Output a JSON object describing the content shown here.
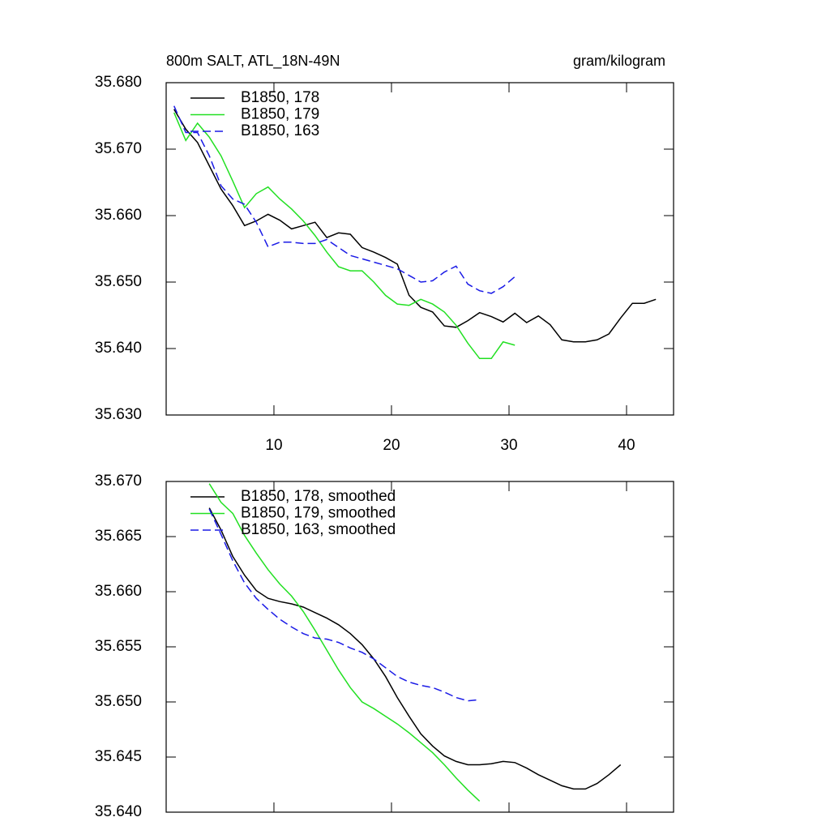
{
  "chart_data": [
    {
      "type": "line",
      "title": "800m SALT, ATL_18N-49N",
      "units": "gram/kilogram",
      "x": [
        1.5,
        2.5,
        3.5,
        4.5,
        5.5,
        6.5,
        7.5,
        8.5,
        9.5,
        10.5,
        11.5,
        12.5,
        13.5,
        14.5,
        15.5,
        16.5,
        17.5,
        18.5,
        19.5,
        20.5,
        21.5,
        22.5,
        23.5,
        24.5,
        25.5,
        26.5,
        27.5,
        28.5,
        29.5,
        30.5,
        31.5,
        32.5,
        33.5,
        34.5,
        35.5,
        36.5,
        37.5,
        38.5,
        39.5,
        40.5,
        41.5,
        42.5
      ],
      "series": [
        {
          "name": "B1850, 178",
          "color": "#000000",
          "style": "solid",
          "values": [
            35.676,
            35.673,
            35.671,
            35.6675,
            35.664,
            35.6615,
            35.6585,
            35.6592,
            35.6602,
            35.6593,
            35.658,
            35.6585,
            35.659,
            35.6567,
            35.6574,
            35.6572,
            35.6552,
            35.6545,
            35.6537,
            35.6527,
            35.648,
            35.6462,
            35.6455,
            35.6434,
            35.6432,
            35.6442,
            35.6454,
            35.6448,
            35.644,
            35.6453,
            35.6439,
            35.6449,
            35.6436,
            35.6413,
            35.641,
            35.641,
            35.6413,
            35.6422,
            35.6446,
            35.6468,
            35.6468,
            35.6474
          ]
        },
        {
          "name": "B1850, 179",
          "color": "#22e022",
          "style": "solid",
          "values": [
            35.6755,
            35.6713,
            35.6739,
            35.6718,
            35.669,
            35.6652,
            35.6612,
            35.6633,
            35.6643,
            35.6625,
            35.661,
            35.6592,
            35.657,
            35.6545,
            35.6523,
            35.6517,
            35.6517,
            35.65,
            35.648,
            35.6467,
            35.6465,
            35.6474,
            35.6467,
            35.6455,
            35.6435,
            35.6408,
            35.6385,
            35.6385,
            35.641,
            35.6405,
            null,
            null,
            null,
            null,
            null,
            null,
            null,
            null,
            null,
            null,
            null,
            null
          ]
        },
        {
          "name": "B1850, 163",
          "color": "#1a1ae6",
          "style": "dashed",
          "values": [
            35.6765,
            35.6725,
            35.6725,
            35.669,
            35.6645,
            35.6625,
            35.6617,
            35.659,
            35.6553,
            35.656,
            35.656,
            35.6558,
            35.6558,
            35.6564,
            35.6552,
            35.654,
            35.6535,
            35.653,
            35.6525,
            35.652,
            35.651,
            35.65,
            35.6502,
            35.6515,
            35.6524,
            35.6497,
            35.6487,
            35.6483,
            35.6493,
            35.6508,
            null,
            null,
            null,
            null,
            null,
            null,
            null,
            null,
            null,
            null,
            null,
            null
          ]
        }
      ],
      "xlim": [
        0.83,
        44.0
      ],
      "xticks": [
        10,
        20,
        30,
        40
      ],
      "ylim": [
        35.63,
        35.68
      ],
      "yticks": [
        {
          "value": 35.63,
          "label": "35.630"
        },
        {
          "value": 35.64,
          "label": "35.640"
        },
        {
          "value": 35.65,
          "label": "35.650"
        },
        {
          "value": 35.66,
          "label": "35.660"
        },
        {
          "value": 35.67,
          "label": "35.670"
        },
        {
          "value": 35.68,
          "label": "35.680"
        }
      ],
      "legend": "upper left"
    },
    {
      "type": "line",
      "x": [
        4.5,
        5.5,
        6.5,
        7.5,
        8.5,
        9.5,
        10.5,
        11.5,
        12.5,
        13.5,
        14.5,
        15.5,
        16.5,
        17.5,
        18.5,
        19.5,
        20.5,
        21.5,
        22.5,
        23.5,
        24.5,
        25.5,
        26.5,
        27.5,
        28.5,
        29.5,
        30.5,
        31.5,
        32.5,
        33.5,
        34.5,
        35.5,
        36.5,
        37.5,
        38.5,
        39.5
      ],
      "series": [
        {
          "name": "B1850, 178, smoothed",
          "color": "#000000",
          "style": "solid",
          "values": [
            35.6676,
            35.6656,
            35.6632,
            35.6615,
            35.6601,
            35.6594,
            35.6591,
            35.6589,
            35.6586,
            35.6581,
            35.6576,
            35.657,
            35.6562,
            35.6552,
            35.6539,
            35.6523,
            35.6504,
            35.6487,
            35.6471,
            35.646,
            35.6451,
            35.6446,
            35.6443,
            35.6443,
            35.6444,
            35.6446,
            35.6445,
            35.644,
            35.6434,
            35.6429,
            35.6424,
            35.6421,
            35.6421,
            35.6426,
            35.6434,
            35.6443
          ]
        },
        {
          "name": "B1850, 179, smoothed",
          "color": "#22e022",
          "style": "solid",
          "values": [
            35.6698,
            35.6681,
            35.6671,
            35.6651,
            35.6635,
            35.662,
            35.6607,
            35.6596,
            35.6582,
            35.6565,
            35.6547,
            35.6529,
            35.6513,
            35.65,
            35.6494,
            35.6487,
            35.648,
            35.6472,
            35.6463,
            35.6454,
            35.6443,
            35.6431,
            35.642,
            35.641,
            null,
            null,
            null,
            null,
            null,
            null,
            null,
            null,
            null,
            null,
            null,
            null
          ]
        },
        {
          "name": "B1850, 163, smoothed",
          "color": "#1a1ae6",
          "style": "dashed",
          "values": [
            35.6675,
            35.6652,
            35.6628,
            35.6608,
            35.6594,
            35.6584,
            35.6575,
            35.6568,
            35.6562,
            35.6558,
            35.6557,
            35.6554,
            35.6549,
            35.6545,
            35.6539,
            35.6531,
            35.6523,
            35.6518,
            35.6515,
            35.6513,
            35.6509,
            35.6504,
            35.6501,
            35.6502,
            null,
            null,
            null,
            null,
            null,
            null,
            null,
            null,
            null,
            null,
            null,
            null
          ]
        }
      ],
      "xlim": [
        0.83,
        44.0
      ],
      "xticks": [
        {
          "value": 10,
          "label": null
        },
        {
          "value": 20,
          "label": null
        },
        {
          "value": 30,
          "label": null
        },
        {
          "value": 40,
          "label": null
        }
      ],
      "ylim": [
        35.64,
        35.67
      ],
      "yticks": [
        {
          "value": 35.64,
          "label": "35.640"
        },
        {
          "value": 35.645,
          "label": "35.645"
        },
        {
          "value": 35.65,
          "label": "35.650"
        },
        {
          "value": 35.655,
          "label": "35.655"
        },
        {
          "value": 35.66,
          "label": "35.660"
        },
        {
          "value": 35.665,
          "label": "35.665"
        },
        {
          "value": 35.67,
          "label": "35.670"
        }
      ],
      "legend": "upper left"
    }
  ]
}
